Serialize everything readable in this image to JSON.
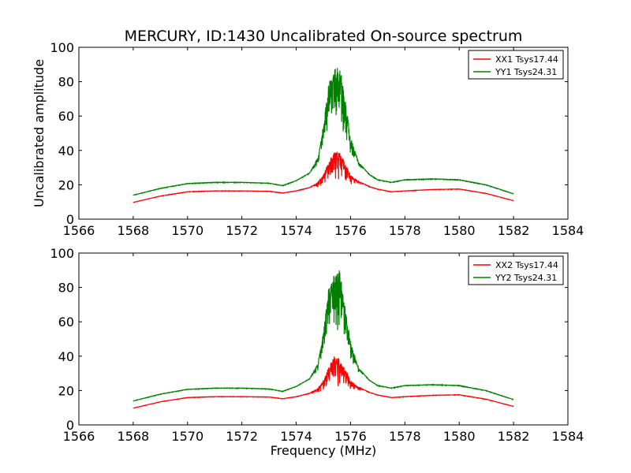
{
  "chart_data": [
    {
      "type": "line",
      "title": "MERCURY, ID:1430 Uncalibrated On-source spectrum",
      "xlabel": "",
      "ylabel": "Uncalibrated amplitude",
      "xlim": [
        1566,
        1584
      ],
      "ylim": [
        0,
        100
      ],
      "x_ticks": [
        "1566",
        "1568",
        "1570",
        "1572",
        "1574",
        "1576",
        "1578",
        "1580",
        "1582",
        "1584"
      ],
      "y_ticks": [
        "0",
        "20",
        "40",
        "60",
        "80",
        "100"
      ],
      "grid": false,
      "legend_position": "top-right",
      "series": [
        {
          "name": "XX1 Tsys17.44",
          "color": "#ff0000",
          "x": [
            1568.0,
            1569.0,
            1570.0,
            1571.0,
            1572.0,
            1573.0,
            1573.5,
            1574.0,
            1574.5,
            1574.8,
            1575.0,
            1575.2,
            1575.4,
            1575.6,
            1575.8,
            1576.0,
            1576.3,
            1576.7,
            1577.0,
            1577.5,
            1578.0,
            1579.0,
            1580.0,
            1581.0,
            1582.0
          ],
          "y": [
            9.8,
            13.5,
            16.0,
            16.5,
            16.5,
            16.3,
            15.3,
            16.5,
            18.5,
            21.5,
            26.0,
            34.0,
            40.0,
            39.0,
            33.0,
            26.0,
            22.0,
            19.0,
            17.5,
            16.0,
            16.5,
            17.3,
            17.6,
            15.0,
            10.8
          ]
        },
        {
          "name": "YY1 Tsys24.31",
          "color": "#008000",
          "x": [
            1568.0,
            1569.0,
            1570.0,
            1571.0,
            1572.0,
            1573.0,
            1573.5,
            1574.0,
            1574.5,
            1574.8,
            1575.0,
            1575.2,
            1575.4,
            1575.6,
            1575.8,
            1576.0,
            1576.3,
            1576.7,
            1577.0,
            1577.5,
            1578.0,
            1579.0,
            1580.0,
            1581.0,
            1582.0
          ],
          "y": [
            14.0,
            18.0,
            20.8,
            21.5,
            21.5,
            21.0,
            19.6,
            22.5,
            27.0,
            36.0,
            55.0,
            80.0,
            89.0,
            90.0,
            70.0,
            48.0,
            33.0,
            26.0,
            23.0,
            21.5,
            23.0,
            23.5,
            23.0,
            20.0,
            14.8
          ]
        }
      ]
    },
    {
      "type": "line",
      "title": "",
      "xlabel": "Frequency (MHz)",
      "ylabel": "",
      "xlim": [
        1566,
        1584
      ],
      "ylim": [
        0,
        100
      ],
      "x_ticks": [
        "1566",
        "1568",
        "1570",
        "1572",
        "1574",
        "1576",
        "1578",
        "1580",
        "1582",
        "1584"
      ],
      "y_ticks": [
        "0",
        "20",
        "40",
        "60",
        "80",
        "100"
      ],
      "grid": false,
      "legend_position": "top-right",
      "series": [
        {
          "name": "XX2 Tsys17.44",
          "color": "#ff0000",
          "x": [
            1568.0,
            1569.0,
            1570.0,
            1571.0,
            1572.0,
            1573.0,
            1573.5,
            1574.0,
            1574.5,
            1574.8,
            1575.0,
            1575.2,
            1575.4,
            1575.6,
            1575.8,
            1576.0,
            1576.3,
            1576.7,
            1577.0,
            1577.5,
            1578.0,
            1579.0,
            1580.0,
            1581.0,
            1582.0
          ],
          "y": [
            9.8,
            13.5,
            16.0,
            16.5,
            16.5,
            16.3,
            15.3,
            16.5,
            18.5,
            21.5,
            26.0,
            34.0,
            40.0,
            39.0,
            33.0,
            26.0,
            22.0,
            19.0,
            17.5,
            16.0,
            16.5,
            17.3,
            17.6,
            15.0,
            10.8
          ]
        },
        {
          "name": "YY2 Tsys24.31",
          "color": "#008000",
          "x": [
            1568.0,
            1569.0,
            1570.0,
            1571.0,
            1572.0,
            1573.0,
            1573.5,
            1574.0,
            1574.5,
            1574.8,
            1575.0,
            1575.2,
            1575.4,
            1575.6,
            1575.8,
            1576.0,
            1576.3,
            1576.7,
            1577.0,
            1577.5,
            1578.0,
            1579.0,
            1580.0,
            1581.0,
            1582.0
          ],
          "y": [
            14.0,
            18.0,
            20.8,
            21.5,
            21.5,
            21.0,
            19.6,
            22.5,
            27.0,
            36.0,
            55.0,
            80.0,
            89.0,
            90.0,
            70.0,
            48.0,
            33.0,
            26.0,
            23.0,
            21.5,
            23.0,
            23.5,
            23.0,
            20.0,
            14.8
          ]
        }
      ]
    }
  ]
}
